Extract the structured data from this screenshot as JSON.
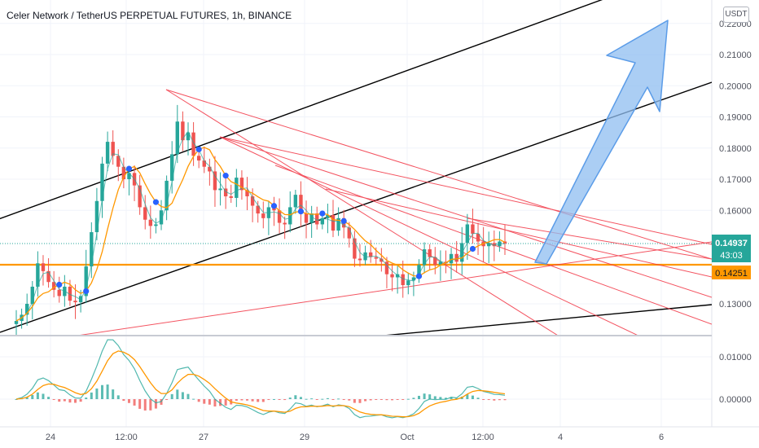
{
  "header": {
    "title": "Celer Network / TetherUS PERPETUAL FUTURES, 1h, BINANCE",
    "currency_button": "USDT"
  },
  "price_labels": {
    "last_price": "0.14937",
    "countdown": "43:03",
    "level_price": "0.14251"
  },
  "colors": {
    "candle_up": "#26a69a",
    "candle_down": "#ef5350",
    "level_line": "#ff9800",
    "trend_lines": "#f23645",
    "channel_lines": "#000000",
    "arrow_fill": "#8fbdf0",
    "last_price_label": "#26a69a",
    "signal_dots": "#2962ff"
  },
  "chart_data": {
    "type": "candlestick",
    "price_axis": {
      "ticks": [
        "0.22000",
        "0.21000",
        "0.20000",
        "0.19000",
        "0.18000",
        "0.17000",
        "0.16000",
        "0.13000"
      ],
      "range": [
        0.1225,
        0.2255
      ]
    },
    "oscillator_axis": {
      "ticks": [
        "0.01000",
        "0.00000"
      ],
      "range": [
        -0.0045,
        0.014
      ]
    },
    "time_axis": {
      "ticks": [
        "24",
        "12:00",
        "27",
        "29",
        "Oct",
        "12:00",
        "4",
        "6"
      ]
    },
    "price_series_approx": [
      0.1245,
      0.1265,
      0.13,
      0.1355,
      0.143,
      0.1405,
      0.137,
      0.1345,
      0.1325,
      0.1355,
      0.131,
      0.1305,
      0.1325,
      0.142,
      0.153,
      0.163,
      0.175,
      0.182,
      0.1775,
      0.174,
      0.17,
      0.172,
      0.168,
      0.161,
      0.157,
      0.155,
      0.1555,
      0.16,
      0.1695,
      0.178,
      0.1885,
      0.1825,
      0.185,
      0.1775,
      0.176,
      0.174,
      0.1725,
      0.1665,
      0.167,
      0.1645,
      0.164,
      0.1705,
      0.1665,
      0.1645,
      0.1615,
      0.159,
      0.1575,
      0.161,
      0.16,
      0.156,
      0.1555,
      0.161,
      0.165,
      0.159,
      0.156,
      0.159,
      0.1555,
      0.1575,
      0.1585,
      0.1535,
      0.1575,
      0.1545,
      0.151,
      0.1445,
      0.144,
      0.1465,
      0.145,
      0.1445,
      0.1435,
      0.1395,
      0.1385,
      0.1395,
      0.136,
      0.1375,
      0.1385,
      0.1425,
      0.1475,
      0.145,
      0.1425,
      0.1435,
      0.143,
      0.146,
      0.1435,
      0.1495,
      0.1555,
      0.1525,
      0.15,
      0.1485,
      0.1495,
      0.1485,
      0.15,
      0.1494
    ],
    "level_line_value": 0.14251,
    "last_value": 0.14937
  }
}
